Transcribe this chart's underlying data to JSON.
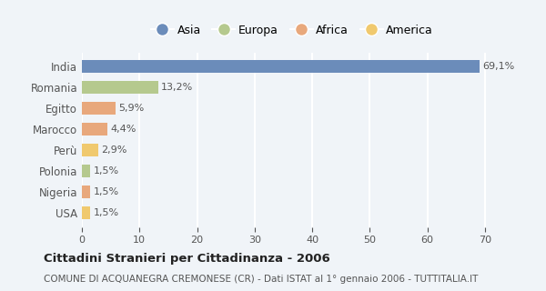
{
  "categories": [
    "India",
    "Romania",
    "Egitto",
    "Marocco",
    "Perù",
    "Polonia",
    "Nigeria",
    "USA"
  ],
  "values": [
    69.1,
    13.2,
    5.9,
    4.4,
    2.9,
    1.5,
    1.5,
    1.5
  ],
  "labels": [
    "69,1%",
    "13,2%",
    "5,9%",
    "4,4%",
    "2,9%",
    "1,5%",
    "1,5%",
    "1,5%"
  ],
  "colors": [
    "#6b8cba",
    "#b5c98e",
    "#e8a87c",
    "#e8a87c",
    "#f0c96e",
    "#b5c98e",
    "#e8a87c",
    "#f0c96e"
  ],
  "legend_labels": [
    "Asia",
    "Europa",
    "Africa",
    "America"
  ],
  "legend_colors": [
    "#6b8cba",
    "#b5c98e",
    "#e8a87c",
    "#f0c96e"
  ],
  "title": "Cittadini Stranieri per Cittadinanza - 2006",
  "subtitle": "COMUNE DI ACQUANEGRA CREMONESE (CR) - Dati ISTAT al 1° gennaio 2006 - TUTTITALIA.IT",
  "xlim": [
    0,
    73
  ],
  "background_color": "#f0f4f8",
  "grid_color": "#ffffff"
}
